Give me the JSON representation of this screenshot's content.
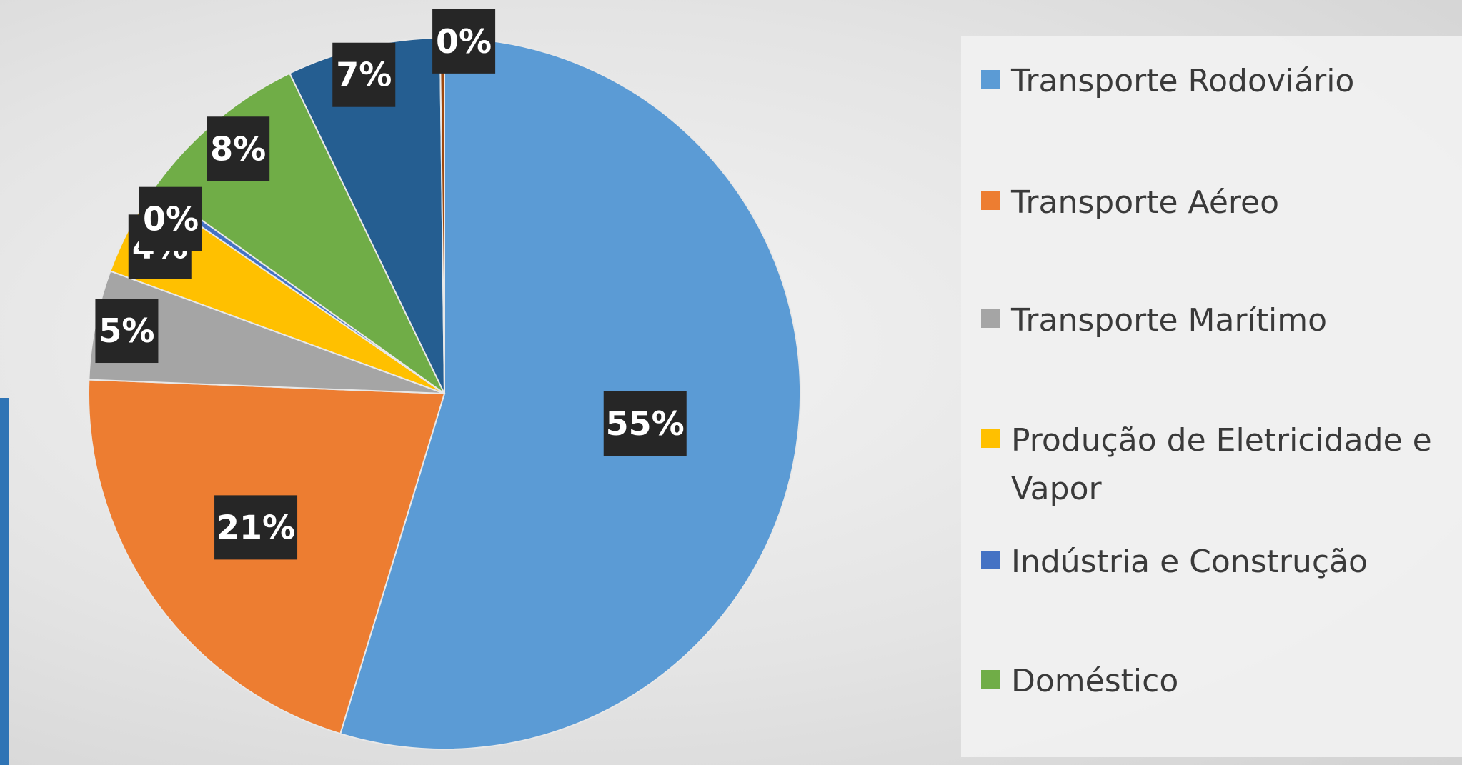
{
  "chart_data": {
    "type": "pie",
    "title": "",
    "start_angle_deg": 0,
    "direction": "clockwise",
    "legend_position": "right",
    "slices": [
      {
        "label": "Transporte Rodoviário",
        "value": 55,
        "display": "55%",
        "color": "#5b9bd5"
      },
      {
        "label": "Transporte Aéreo",
        "value": 21,
        "display": "21%",
        "color": "#ed7d31"
      },
      {
        "label": "Transporte Marítimo",
        "value": 5,
        "display": "5%",
        "color": "#a5a5a5"
      },
      {
        "label": "Produção de Eletricidade e Vapor",
        "value": 4,
        "display": "4%",
        "color": "#ffc000"
      },
      {
        "label": "Indústria e Construção",
        "value": 0.3,
        "display": "0%",
        "color": "#4472c4"
      },
      {
        "label": "Doméstico",
        "value": 8,
        "display": "8%",
        "color": "#70ad47"
      },
      {
        "label": "",
        "value": 7,
        "display": "7%",
        "color": "#255e91"
      },
      {
        "label": "",
        "value": 0.2,
        "display": "0%",
        "color": "#9e480e"
      }
    ],
    "legend": [
      {
        "label": "Transporte Rodoviário",
        "color": "#5b9bd5"
      },
      {
        "label": "Transporte Aéreo",
        "color": "#ed7d31"
      },
      {
        "label": "Transporte Marítimo",
        "color": "#a5a5a5"
      },
      {
        "label": "Produção de Eletricidade e Vapor",
        "color": "#ffc000"
      },
      {
        "label": "Indústria e Construção",
        "color": "#4472c4"
      },
      {
        "label": "Doméstico",
        "color": "#70ad47"
      }
    ]
  }
}
